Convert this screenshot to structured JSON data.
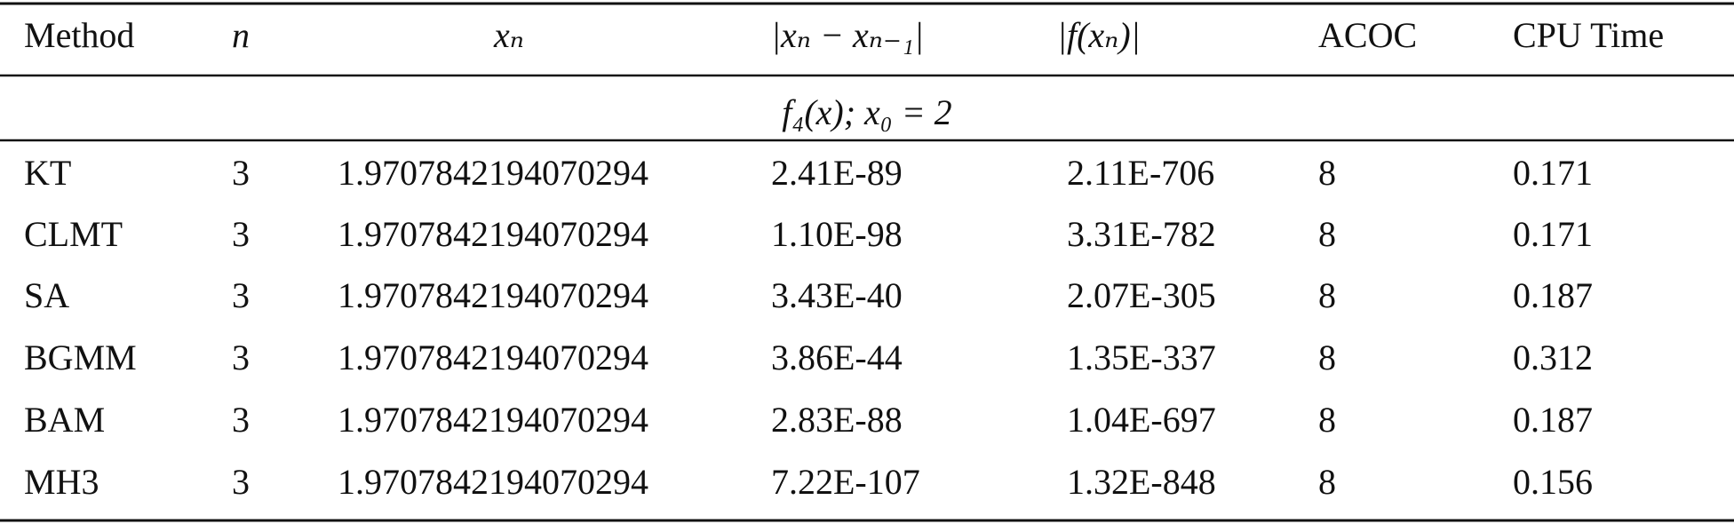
{
  "table": {
    "headers": [
      "Method",
      "n",
      "xₙ",
      "|xₙ − xₙ₋₁|",
      "|f(xₙ)|",
      "ACOC",
      "CPU Time"
    ],
    "section": "f₄(x);  x₀ = 2",
    "rows": [
      [
        "KT",
        "3",
        "1.9707842194070294",
        "2.41E-89",
        "2.11E-706",
        "8",
        "0.171"
      ],
      [
        "CLMT",
        "3",
        "1.9707842194070294",
        "1.10E-98",
        "3.31E-782",
        "8",
        "0.171"
      ],
      [
        "SA",
        "3",
        "1.9707842194070294",
        "3.43E-40",
        "2.07E-305",
        "8",
        "0.187"
      ],
      [
        "BGMM",
        "3",
        "1.9707842194070294",
        "3.86E-44",
        "1.35E-337",
        "8",
        "0.312"
      ],
      [
        "BAM",
        "3",
        "1.9707842194070294",
        "2.83E-88",
        "1.04E-697",
        "8",
        "0.187"
      ],
      [
        "MH3",
        "3",
        "1.9707842194070294",
        "7.22E-107",
        "1.32E-848",
        "8",
        "0.156"
      ]
    ]
  }
}
